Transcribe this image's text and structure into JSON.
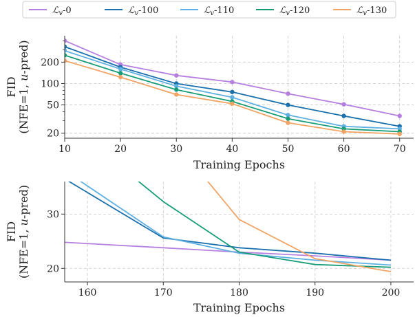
{
  "chart_data": [
    {
      "type": "line",
      "title": "",
      "xlabel": "Training Epochs",
      "ylabel": "FID",
      "ylabel2": "(NFE=1, u-pred)",
      "yscale": "log",
      "x": [
        10,
        20,
        30,
        40,
        50,
        60,
        70
      ],
      "xticks": [
        "10",
        "20",
        "30",
        "40",
        "50",
        "60",
        "70"
      ],
      "yticks": [
        "20",
        "50",
        "100",
        "200"
      ],
      "xlim": [
        10,
        72.5
      ],
      "ylim": [
        17,
        470
      ],
      "grid": true,
      "markers": true,
      "series": [
        {
          "name": "Lv-0",
          "color": "#b57fe0",
          "values": [
            400,
            185,
            130,
            105,
            72,
            51,
            35
          ]
        },
        {
          "name": "Lv-100",
          "color": "#1a6fad",
          "values": [
            330,
            170,
            100,
            76,
            50,
            35,
            25
          ]
        },
        {
          "name": "Lv-110",
          "color": "#5fb0e2",
          "values": [
            290,
            160,
            92,
            64,
            36,
            25,
            23
          ]
        },
        {
          "name": "Lv-120",
          "color": "#169d78",
          "values": [
            250,
            140,
            82,
            56,
            32,
            23,
            21
          ]
        },
        {
          "name": "Lv-130",
          "color": "#f0a464",
          "values": [
            210,
            123,
            70,
            52,
            28,
            21,
            19.5
          ]
        }
      ]
    },
    {
      "type": "line",
      "title": "",
      "xlabel": "Training Epochs",
      "ylabel": "FID",
      "ylabel2": "(NFE=1, u-pred)",
      "xticks": [
        "160",
        "170",
        "180",
        "190",
        "200"
      ],
      "yticks": [
        "20",
        "30"
      ],
      "xlim": [
        157,
        203
      ],
      "ylim": [
        17.5,
        36
      ],
      "grid": true,
      "markers": false,
      "series": [
        {
          "name": "Lv-0",
          "color": "#b57fe0",
          "x": [
            157,
            170,
            180,
            190,
            200
          ],
          "values": [
            24.8,
            23.8,
            23.0,
            22.3,
            21.5
          ]
        },
        {
          "name": "Lv-100",
          "color": "#1a6fad",
          "x": [
            157,
            170,
            180,
            190,
            200
          ],
          "values": [
            36.5,
            25.6,
            23.8,
            22.8,
            21.5
          ]
        },
        {
          "name": "Lv-110",
          "color": "#5fb0e2",
          "x": [
            157,
            170,
            180,
            190,
            200
          ],
          "values": [
            38.0,
            25.8,
            22.8,
            21.5,
            20.6
          ]
        },
        {
          "name": "Lv-120",
          "color": "#169d78",
          "x": [
            165,
            170,
            180,
            190,
            200
          ],
          "values": [
            38.0,
            32.3,
            23.0,
            20.7,
            20.2
          ]
        },
        {
          "name": "Lv-130",
          "color": "#f0a464",
          "x": [
            175,
            180,
            190,
            200
          ],
          "values": [
            37.5,
            29.0,
            21.8,
            19.4
          ]
        }
      ]
    }
  ],
  "legend": {
    "placement": "top",
    "items": [
      {
        "sym": "ℒ",
        "sub": "v",
        "suffix": "-0",
        "color": "#b57fe0"
      },
      {
        "sym": "ℒ",
        "sub": "v",
        "suffix": "-100",
        "color": "#1a6fad"
      },
      {
        "sym": "ℒ",
        "sub": "v",
        "suffix": "-110",
        "color": "#5fb0e2"
      },
      {
        "sym": "ℒ",
        "sub": "v",
        "suffix": "-120",
        "color": "#169d78"
      },
      {
        "sym": "ℒ",
        "sub": "v",
        "suffix": "-130",
        "color": "#f0a464"
      }
    ]
  }
}
